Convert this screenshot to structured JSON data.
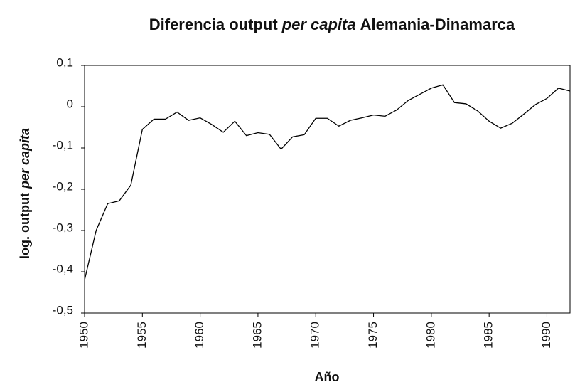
{
  "chart_data": {
    "type": "line",
    "title_parts": [
      "Diferencia output",
      "per capita",
      "Alemania-Dinamarca"
    ],
    "title_italic": [
      false,
      true,
      false
    ],
    "y_label_parts": [
      "log. output",
      "per capita"
    ],
    "y_label_italic": [
      false,
      true
    ],
    "x_label": "Año",
    "x": [
      1950,
      1951,
      1952,
      1953,
      1954,
      1955,
      1956,
      1957,
      1958,
      1959,
      1960,
      1961,
      1962,
      1963,
      1964,
      1965,
      1966,
      1967,
      1968,
      1969,
      1970,
      1971,
      1972,
      1973,
      1974,
      1975,
      1976,
      1977,
      1978,
      1979,
      1980,
      1981,
      1982,
      1983,
      1984,
      1985,
      1986,
      1987,
      1988,
      1989,
      1990,
      1991,
      1992
    ],
    "series": [
      {
        "color": "#000000",
        "values": [
          -0.42,
          -0.3,
          -0.235,
          -0.228,
          -0.19,
          -0.055,
          -0.03,
          -0.03,
          -0.013,
          -0.033,
          -0.027,
          -0.043,
          -0.062,
          -0.035,
          -0.07,
          -0.063,
          -0.067,
          -0.103,
          -0.073,
          -0.068,
          -0.028,
          -0.028,
          -0.047,
          -0.033,
          -0.027,
          -0.02,
          -0.023,
          -0.008,
          0.015,
          0.03,
          0.045,
          0.053,
          0.01,
          0.007,
          -0.01,
          -0.035,
          -0.052,
          -0.04,
          -0.018,
          0.005,
          0.02,
          0.045,
          0.038
        ]
      }
    ],
    "xlim": [
      1950,
      1992
    ],
    "xticks": [
      1950,
      1955,
      1960,
      1965,
      1970,
      1975,
      1980,
      1985,
      1990
    ],
    "ylim": [
      -0.5,
      0.1
    ],
    "yticks": [
      {
        "value": -0.5,
        "label": "-0,5"
      },
      {
        "value": -0.4,
        "label": "-0,4"
      },
      {
        "value": -0.3,
        "label": "-0,3"
      },
      {
        "value": -0.2,
        "label": "-0,2"
      },
      {
        "value": -0.1,
        "label": "-0,1"
      },
      0,
      {
        "value": 0.1,
        "label": "0,1"
      }
    ],
    "grid": false
  }
}
